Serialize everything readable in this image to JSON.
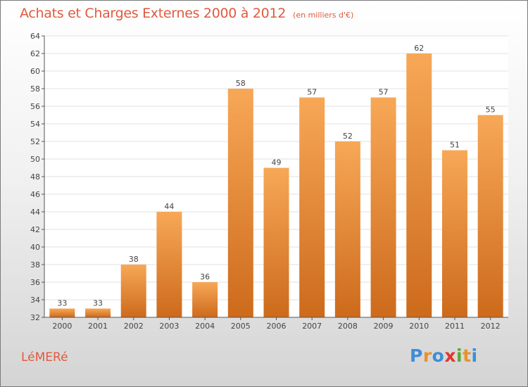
{
  "header": {
    "title": "Achats et Charges Externes 2000 à 2012",
    "unit": "(en milliers d'€)"
  },
  "footer": {
    "commune": "LéMERé",
    "logo": {
      "letters": [
        "P",
        "r",
        "o",
        "x",
        "i",
        "t",
        "i"
      ],
      "colors": [
        "#3d8fd6",
        "#e8922e",
        "#3d8fd6",
        "#e2352b",
        "#5aa83a",
        "#e8922e",
        "#3d8fd6"
      ]
    }
  },
  "chart_data": {
    "type": "bar",
    "title": "Achats et Charges Externes 2000 à 2012",
    "subtitle": "(en milliers d'€)",
    "categories": [
      "2000",
      "2001",
      "2002",
      "2003",
      "2004",
      "2005",
      "2006",
      "2007",
      "2008",
      "2009",
      "2010",
      "2011",
      "2012"
    ],
    "values": [
      33,
      33,
      38,
      44,
      36,
      58,
      49,
      57,
      52,
      57,
      62,
      51,
      55
    ],
    "data_labels": [
      "33",
      "33",
      "38",
      "44",
      "36",
      "58",
      "49",
      "57",
      "52",
      "57",
      "62",
      "51",
      "55"
    ],
    "ylim": [
      32,
      64
    ],
    "yticks": [
      32,
      34,
      36,
      38,
      40,
      42,
      44,
      46,
      48,
      50,
      52,
      54,
      56,
      58,
      60,
      62,
      64
    ],
    "grid": true,
    "colors": {
      "bar_top": "#f7a857",
      "bar_bottom": "#cd6a1c",
      "grid": "#e0e0e0",
      "axis": "#555555"
    }
  }
}
